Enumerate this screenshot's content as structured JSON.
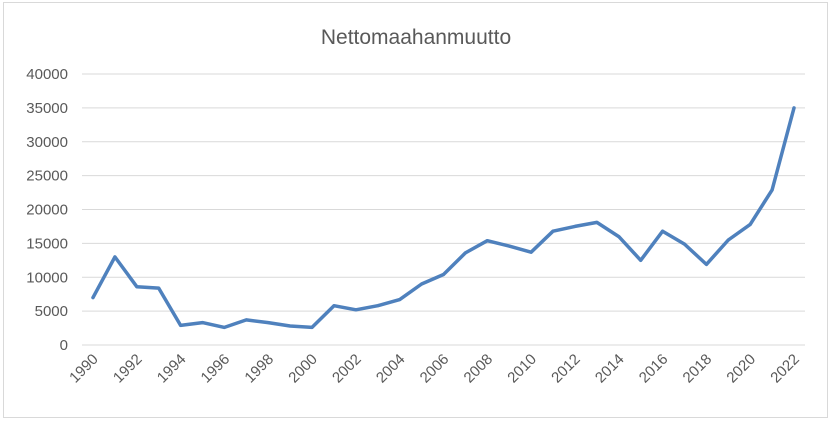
{
  "chart_data": {
    "type": "line",
    "title": "Nettomaahanmuutto",
    "xlabel": "",
    "ylabel": "",
    "ylim": [
      0,
      40000
    ],
    "yticks": [
      "0",
      "5000",
      "10000",
      "15000",
      "20000",
      "25000",
      "30000",
      "35000",
      "40000"
    ],
    "xtick_labels": [
      "1990",
      "1992",
      "1994",
      "1996",
      "1998",
      "2000",
      "2002",
      "2004",
      "2006",
      "2008",
      "2010",
      "2012",
      "2014",
      "2016",
      "2018",
      "2020",
      "2022"
    ],
    "grid": true,
    "legend": "none",
    "color": "#4f81bd",
    "x": [
      1990,
      1991,
      1992,
      1993,
      1994,
      1995,
      1996,
      1997,
      1998,
      1999,
      2000,
      2001,
      2002,
      2003,
      2004,
      2005,
      2006,
      2007,
      2008,
      2009,
      2010,
      2011,
      2012,
      2013,
      2014,
      2015,
      2016,
      2017,
      2018,
      2019,
      2020,
      2021,
      2022
    ],
    "series": [
      {
        "values": [
          7000,
          13000,
          8600,
          8400,
          2900,
          3300,
          2600,
          3700,
          3300,
          2800,
          2600,
          5800,
          5200,
          5800,
          6700,
          9000,
          10400,
          13600,
          15400,
          14600,
          13700,
          16800,
          17500,
          18100,
          16000,
          12500,
          16800,
          14900,
          11900,
          15500,
          17800,
          22900,
          35000
        ]
      }
    ]
  }
}
